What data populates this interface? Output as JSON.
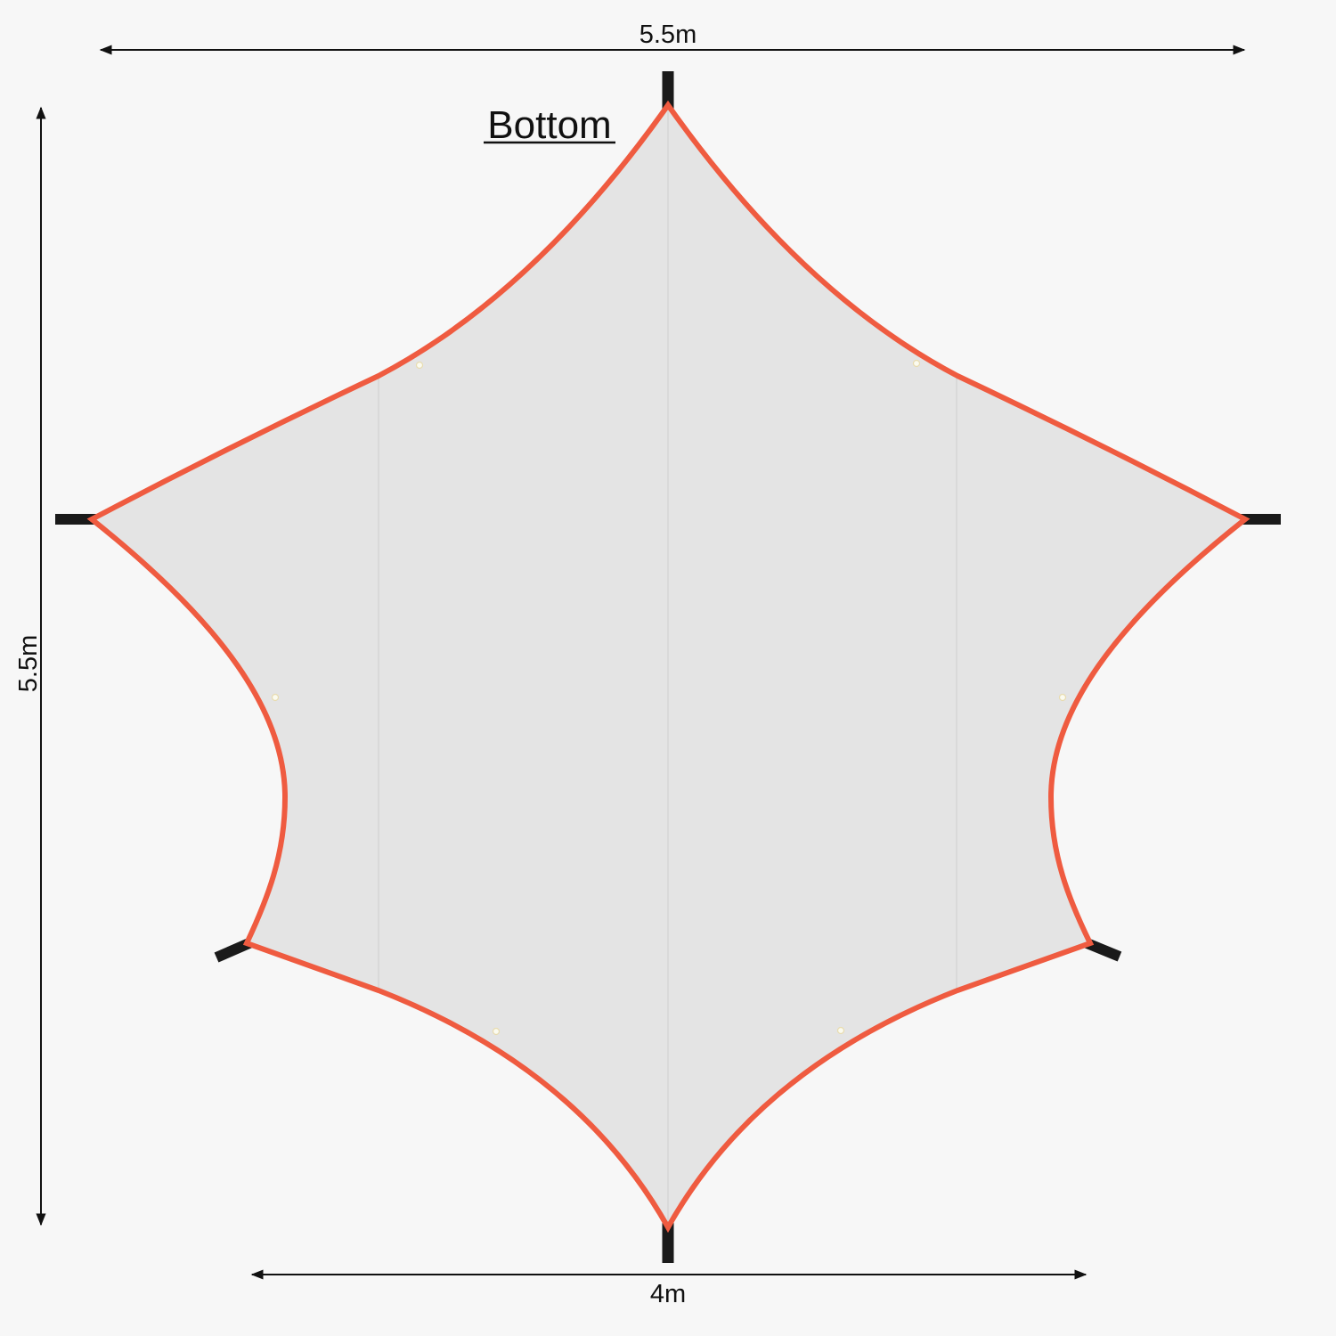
{
  "title": "Bottom",
  "dimensions": {
    "top_width": "5.5m",
    "height": "5.5m",
    "bottom_width": "4m"
  },
  "colors": {
    "background": "#f7f7f7",
    "fabric": "#e4e4e4",
    "edge": "#ef5b40",
    "post": "#1a1a1a",
    "seam": "#d2d2d2"
  }
}
